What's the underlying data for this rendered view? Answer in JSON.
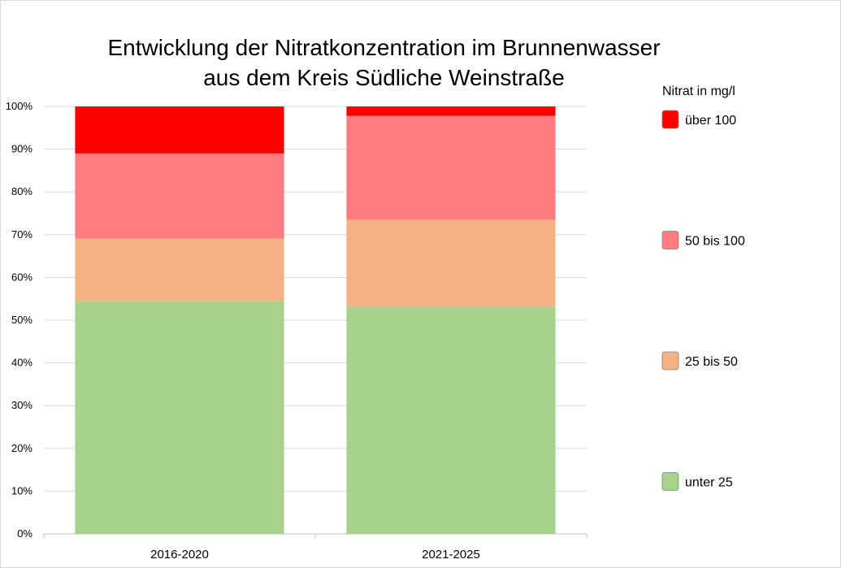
{
  "chart_data": {
    "type": "bar",
    "stacked": true,
    "percent": true,
    "title_lines": [
      "Entwicklung der Nitratkonzentration im Brunnenwasser",
      "aus dem Kreis Südliche Weinstraße"
    ],
    "categories": [
      "2016-2020",
      "2021-2025"
    ],
    "series": [
      {
        "name": "unter 25",
        "color": "#a9d18e",
        "values": [
          54.5,
          53.2
        ]
      },
      {
        "name": "25 bis 50",
        "color": "#f4b183",
        "values": [
          14.6,
          20.3
        ]
      },
      {
        "name": "50 bis 100",
        "color": "#ff7c80",
        "values": [
          19.9,
          24.3
        ]
      },
      {
        "name": "über 100",
        "color": "#ff0000",
        "values": [
          11.0,
          2.2
        ]
      }
    ],
    "legend_order": [
      "über 100",
      "50 bis 100",
      "25 bis 50",
      "unter 25"
    ],
    "legend_title": "Nitrat in mg/l",
    "legend_position": "right",
    "ylim": [
      0,
      100
    ],
    "yticks": [
      "0%",
      "10%",
      "20%",
      "30%",
      "40%",
      "50%",
      "60%",
      "70%",
      "80%",
      "90%",
      "100%"
    ],
    "grid": true
  }
}
